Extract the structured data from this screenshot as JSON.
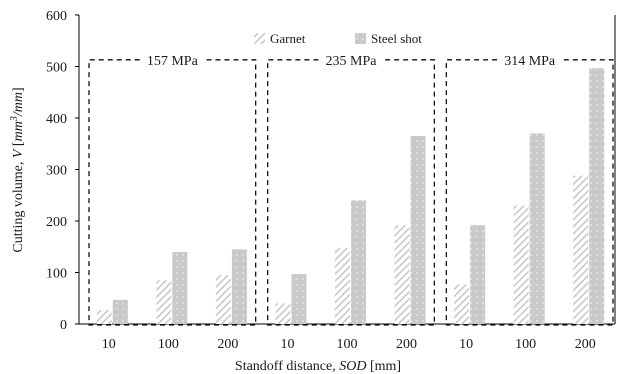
{
  "chart_data": {
    "type": "bar",
    "title": "",
    "ylabel_parts": [
      "Cutting volume, ",
      "V",
      " [",
      "mm",
      "3",
      "/mm",
      "]"
    ],
    "xlabel_parts": [
      "Standoff distance, ",
      "SOD",
      " [mm]"
    ],
    "ylim": [
      0,
      600
    ],
    "yticks": [
      0,
      100,
      200,
      300,
      400,
      500,
      600
    ],
    "grid": false,
    "legend_position": "top-center",
    "categories": [
      "10",
      "100",
      "200",
      "10",
      "100",
      "200",
      "10",
      "100",
      "200"
    ],
    "groups": [
      {
        "label": "157 MPa",
        "categories": [
          "10",
          "100",
          "200"
        ]
      },
      {
        "label": "235 MPa",
        "categories": [
          "10",
          "100",
          "200"
        ]
      },
      {
        "label": "314 MPa",
        "categories": [
          "10",
          "100",
          "200"
        ]
      }
    ],
    "series": [
      {
        "name": "Garnet",
        "color": "#c8c8c8",
        "pattern": "diagonal-hatch",
        "values": [
          27,
          85,
          95,
          40,
          148,
          192,
          77,
          230,
          288
        ]
      },
      {
        "name": "Steel shot",
        "color": "#c8c8c8",
        "pattern": "dotted",
        "values": [
          47,
          140,
          145,
          97,
          240,
          365,
          192,
          370,
          497
        ]
      }
    ]
  }
}
